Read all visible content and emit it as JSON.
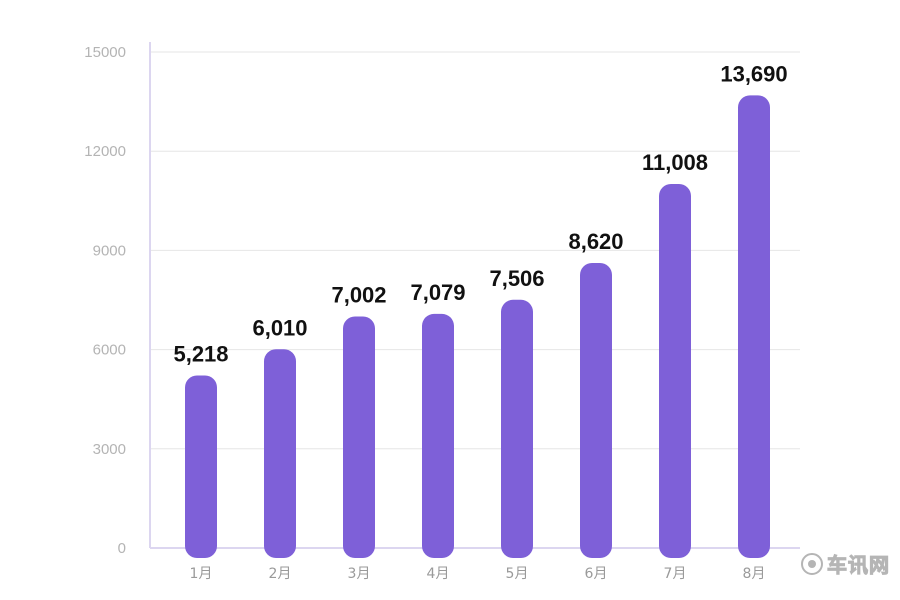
{
  "chart_data": {
    "type": "bar",
    "categories": [
      "1月",
      "2月",
      "3月",
      "4月",
      "5月",
      "6月",
      "7月",
      "8月"
    ],
    "values": [
      5218,
      6010,
      7002,
      7079,
      7506,
      8620,
      11008,
      13690
    ],
    "value_labels": [
      "5,218",
      "6,010",
      "7,002",
      "7,079",
      "7,506",
      "8,620",
      "11,008",
      "13,690"
    ],
    "yticks": [
      0,
      3000,
      6000,
      9000,
      12000,
      15000
    ],
    "ylim": [
      0,
      15000
    ],
    "grid": true,
    "bar_color": "#7e60d8",
    "title": "",
    "xlabel": "",
    "ylabel": ""
  },
  "watermark": {
    "text": "车讯网"
  }
}
